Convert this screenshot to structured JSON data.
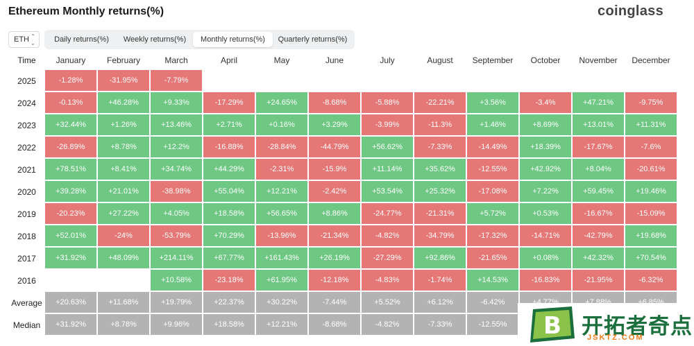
{
  "header": {
    "title": "Ethereum Monthly returns(%)",
    "brand": "coinglass"
  },
  "asset_select": {
    "value": "ETH"
  },
  "tabs": [
    {
      "label": "Daily returns(%)",
      "active": false
    },
    {
      "label": "Weekly returns(%)",
      "active": false
    },
    {
      "label": "Monthly returns(%)",
      "active": true
    },
    {
      "label": "Quarterly returns(%)",
      "active": false
    }
  ],
  "table": {
    "time_header": "Time",
    "months": [
      "January",
      "February",
      "March",
      "April",
      "May",
      "June",
      "July",
      "August",
      "September",
      "October",
      "November",
      "December"
    ],
    "rows": [
      {
        "label": "2025",
        "kind": "year",
        "values": [
          "-1.28%",
          "-31.95%",
          "-7.79%",
          "",
          "",
          "",
          "",
          "",
          "",
          "",
          "",
          ""
        ]
      },
      {
        "label": "2024",
        "kind": "year",
        "values": [
          "-0.13%",
          "+46.28%",
          "+9.33%",
          "-17.29%",
          "+24.65%",
          "-8.68%",
          "-5.88%",
          "-22.21%",
          "+3.56%",
          "-3.4%",
          "+47.21%",
          "-9.75%"
        ]
      },
      {
        "label": "2023",
        "kind": "year",
        "values": [
          "+32.44%",
          "+1.26%",
          "+13.46%",
          "+2.71%",
          "+0.16%",
          "+3.29%",
          "-3.99%",
          "-11.3%",
          "+1.46%",
          "+8.69%",
          "+13.01%",
          "+11.31%"
        ]
      },
      {
        "label": "2022",
        "kind": "year",
        "values": [
          "-26.89%",
          "+8.78%",
          "+12.2%",
          "-16.88%",
          "-28.84%",
          "-44.79%",
          "+56.62%",
          "-7.33%",
          "-14.49%",
          "+18.39%",
          "-17.67%",
          "-7.6%"
        ]
      },
      {
        "label": "2021",
        "kind": "year",
        "values": [
          "+78.51%",
          "+8.41%",
          "+34.74%",
          "+44.29%",
          "-2.31%",
          "-15.9%",
          "+11.14%",
          "+35.62%",
          "-12.55%",
          "+42.92%",
          "+8.04%",
          "-20.61%"
        ]
      },
      {
        "label": "2020",
        "kind": "year",
        "values": [
          "+39.28%",
          "+21.01%",
          "-38.98%",
          "+55.04%",
          "+12.21%",
          "-2.42%",
          "+53.54%",
          "+25.32%",
          "-17.08%",
          "+7.22%",
          "+59.45%",
          "+19.46%"
        ]
      },
      {
        "label": "2019",
        "kind": "year",
        "values": [
          "-20.23%",
          "+27.22%",
          "+4.05%",
          "+18.58%",
          "+56.65%",
          "+8.86%",
          "-24.77%",
          "-21.31%",
          "+5.72%",
          "+0.53%",
          "-16.67%",
          "-15.09%"
        ]
      },
      {
        "label": "2018",
        "kind": "year",
        "values": [
          "+52.01%",
          "-24%",
          "-53.79%",
          "+70.29%",
          "-13.96%",
          "-21.34%",
          "-4.82%",
          "-34.79%",
          "-17.32%",
          "-14.71%",
          "-42.79%",
          "+19.68%"
        ]
      },
      {
        "label": "2017",
        "kind": "year",
        "values": [
          "+31.92%",
          "+48.09%",
          "+214.11%",
          "+67.77%",
          "+161.43%",
          "+26.19%",
          "-27.29%",
          "+92.86%",
          "-21.65%",
          "+0.08%",
          "+42.32%",
          "+70.54%"
        ]
      },
      {
        "label": "2016",
        "kind": "year",
        "values": [
          "",
          "",
          "+10.58%",
          "-23.18%",
          "+61.95%",
          "-12.18%",
          "-4.83%",
          "-1.74%",
          "+14.53%",
          "-16.83%",
          "-21.95%",
          "-6.32%"
        ]
      },
      {
        "label": "Average",
        "kind": "summary",
        "values": [
          "+20.63%",
          "+11.68%",
          "+19.79%",
          "+22.37%",
          "+30.22%",
          "-7.44%",
          "+5.52%",
          "+6.12%",
          "-6.42%",
          "+4.77%",
          "+7.88%",
          "+6.85%"
        ]
      },
      {
        "label": "Median",
        "kind": "summary",
        "values": [
          "+31.92%",
          "+8.78%",
          "+9.96%",
          "+18.58%",
          "+12.21%",
          "-8.68%",
          "-4.82%",
          "-7.33%",
          "-12.55%",
          "",
          "",
          ""
        ]
      }
    ]
  },
  "colors": {
    "positive": "#6fc784",
    "negative": "#e57777",
    "summary": "#b3b3b3"
  },
  "watermark": {
    "cn": "开拓者奇点",
    "en": "JSKTZ.COM",
    "logo_letter": "B"
  }
}
